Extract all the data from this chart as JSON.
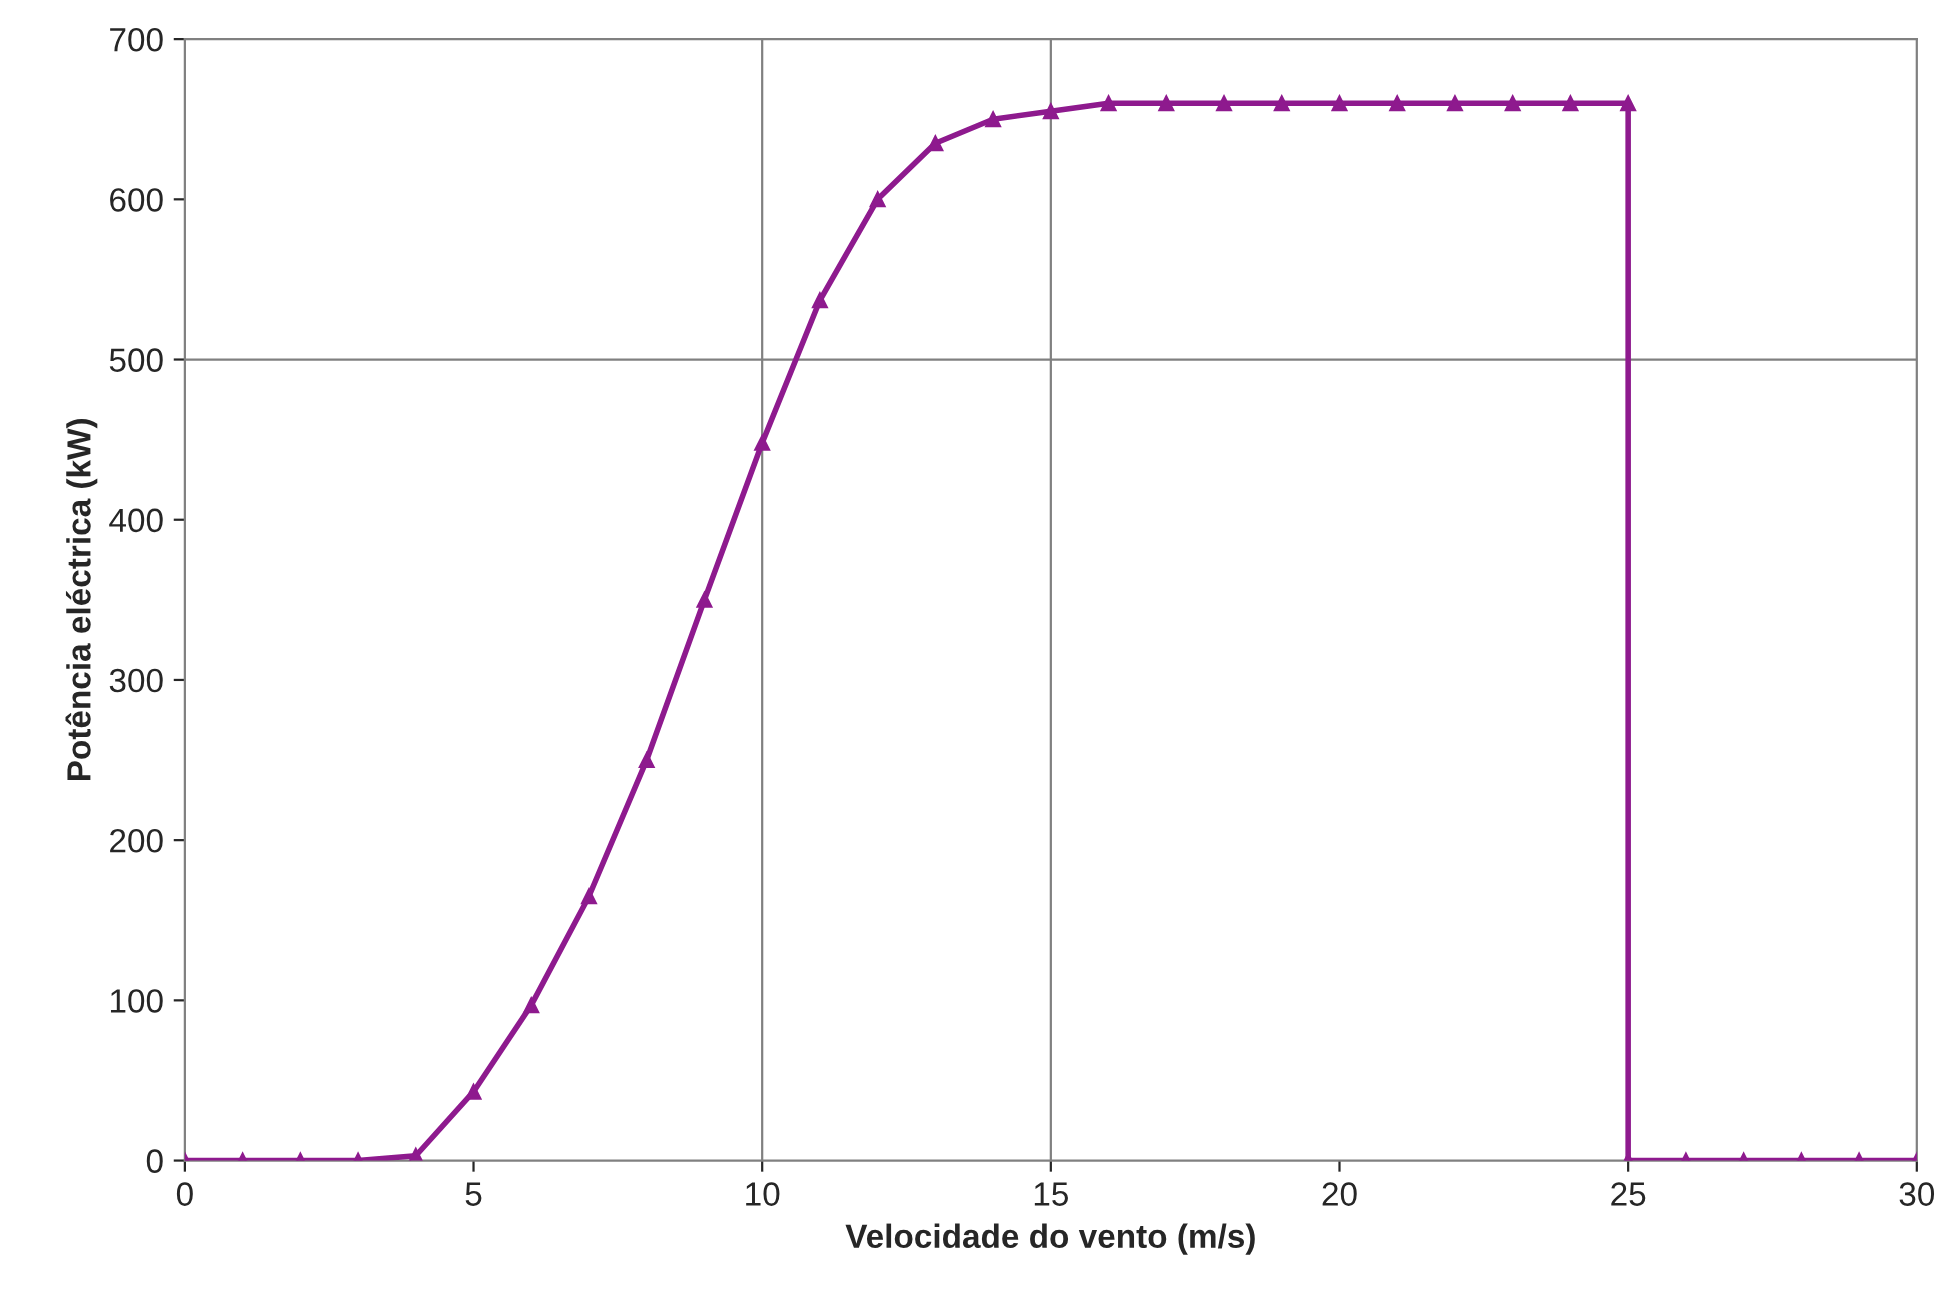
{
  "chart_data": {
    "type": "line",
    "xlabel": "Velocidade do vento (m/s)",
    "ylabel": "Potência eléctrica (kW)",
    "x": [
      0,
      1,
      2,
      3,
      4,
      5,
      6,
      7,
      8,
      9,
      10,
      11,
      12,
      13,
      14,
      15,
      16,
      17,
      18,
      19,
      20,
      21,
      22,
      23,
      24,
      25,
      25,
      26,
      27,
      28,
      29,
      30
    ],
    "series": [
      {
        "color": "#8e1a8e",
        "values": [
          0,
          0,
          0,
          0,
          3,
          43,
          97,
          165,
          250,
          350,
          448,
          537,
          600,
          635,
          650,
          655,
          660,
          660,
          660,
          660,
          660,
          660,
          660,
          660,
          660,
          660,
          0,
          0,
          0,
          0,
          0,
          0
        ]
      }
    ],
    "xlim": [
      0,
      30
    ],
    "xticks": [
      0,
      5,
      10,
      15,
      20,
      25,
      30
    ],
    "ylim": [
      0,
      700
    ],
    "yticks": [
      0,
      100,
      200,
      300,
      400,
      500,
      600,
      700
    ],
    "marker": "triangle",
    "line_style": "solid",
    "ref_lines": [
      {
        "axis": "x",
        "value": 10,
        "color": "#808080"
      },
      {
        "axis": "x",
        "value": 15,
        "color": "#808080"
      },
      {
        "axis": "y",
        "value": 500,
        "color": "#808080"
      }
    ]
  }
}
